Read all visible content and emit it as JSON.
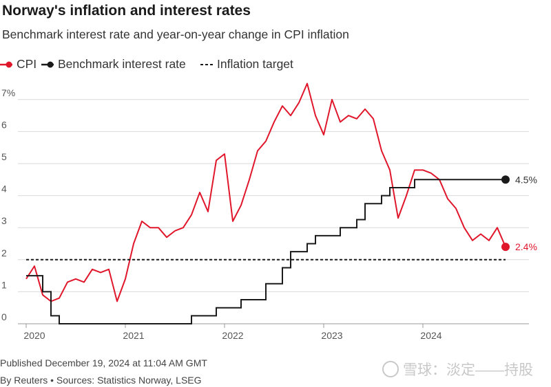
{
  "title": "Norway's inflation and interest rates",
  "subtitle": "Benchmark interest rate and year-on-year change in CPI inflation",
  "legend": {
    "cpi": "CPI",
    "rate": "Benchmark interest rate",
    "target": "Inflation target"
  },
  "footer": {
    "published": "Published December 19, 2024 at 11:04 AM GMT",
    "source": "By Reuters • Sources: Statistics Norway, LSEG"
  },
  "watermark": "雪球：淡定——持股",
  "colors": {
    "cpi": "#e0162b",
    "rate": "#1a1a1a",
    "target": "#1a1a1a",
    "grid": "#d9d9d9"
  },
  "chart_data": {
    "type": "line",
    "title": "Norway's inflation and interest rates",
    "subtitle": "Benchmark interest rate and year-on-year change in CPI inflation",
    "y_tick_labels": [
      "0",
      "1",
      "2",
      "3",
      "4",
      "5",
      "6",
      "7%"
    ],
    "ylim": [
      0,
      7.5
    ],
    "x_tick_labels": [
      "2020",
      "2021",
      "2022",
      "2023",
      "2024"
    ],
    "xlim": [
      "2020-01",
      "2024-12"
    ],
    "grid": true,
    "legend_position": "top-left",
    "end_labels": {
      "cpi": "2.4%",
      "rate": "4.5%"
    },
    "series": [
      {
        "name": "CPI",
        "style": "line",
        "x": [
          "2020-01",
          "2020-02",
          "2020-03",
          "2020-04",
          "2020-05",
          "2020-06",
          "2020-07",
          "2020-08",
          "2020-09",
          "2020-10",
          "2020-11",
          "2020-12",
          "2021-01",
          "2021-02",
          "2021-03",
          "2021-04",
          "2021-05",
          "2021-06",
          "2021-07",
          "2021-08",
          "2021-09",
          "2021-10",
          "2021-11",
          "2021-12",
          "2022-01",
          "2022-02",
          "2022-03",
          "2022-04",
          "2022-05",
          "2022-06",
          "2022-07",
          "2022-08",
          "2022-09",
          "2022-10",
          "2022-11",
          "2022-12",
          "2023-01",
          "2023-02",
          "2023-03",
          "2023-04",
          "2023-05",
          "2023-06",
          "2023-07",
          "2023-08",
          "2023-09",
          "2023-10",
          "2023-11",
          "2023-12",
          "2024-01",
          "2024-02",
          "2024-03",
          "2024-04",
          "2024-05",
          "2024-06",
          "2024-07",
          "2024-08",
          "2024-09",
          "2024-10",
          "2024-11"
        ],
        "y": [
          1.4,
          1.8,
          0.9,
          0.7,
          0.8,
          1.3,
          1.4,
          1.3,
          1.7,
          1.6,
          1.7,
          0.7,
          1.4,
          2.5,
          3.2,
          3.0,
          3.0,
          2.7,
          2.9,
          3.0,
          3.4,
          4.1,
          3.5,
          5.1,
          5.3,
          3.2,
          3.7,
          4.5,
          5.4,
          5.7,
          6.3,
          6.8,
          6.5,
          6.9,
          7.5,
          6.5,
          5.9,
          7.0,
          6.3,
          6.5,
          6.4,
          6.7,
          6.4,
          5.4,
          4.8,
          3.3,
          4.0,
          4.8,
          4.8,
          4.7,
          4.5,
          3.9,
          3.6,
          3.0,
          2.6,
          2.8,
          2.6,
          3.0,
          2.4
        ]
      },
      {
        "name": "Benchmark interest rate",
        "style": "step",
        "x": [
          "2020-01",
          "2020-03",
          "2020-04",
          "2020-05",
          "2020-07",
          "2021-01",
          "2021-07",
          "2021-09",
          "2021-12",
          "2022-03",
          "2022-06",
          "2022-08",
          "2022-09",
          "2022-11",
          "2022-12",
          "2023-03",
          "2023-05",
          "2023-06",
          "2023-08",
          "2023-09",
          "2023-12",
          "2024-11"
        ],
        "y": [
          1.5,
          1.0,
          0.25,
          0.0,
          0.0,
          0.0,
          0.0,
          0.25,
          0.5,
          0.75,
          1.25,
          1.75,
          2.25,
          2.5,
          2.75,
          3.0,
          3.25,
          3.75,
          4.0,
          4.25,
          4.5,
          4.5
        ]
      },
      {
        "name": "Inflation target",
        "style": "dashed",
        "x": [
          "2020-01",
          "2024-11"
        ],
        "y": [
          2.0,
          2.0
        ]
      }
    ]
  }
}
